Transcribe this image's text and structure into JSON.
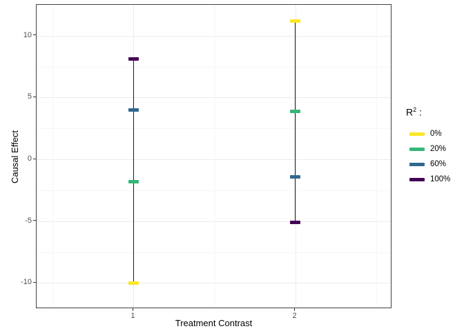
{
  "chart_data": {
    "type": "crossbar-interval",
    "title": "",
    "xlabel": "Treatment Contrast",
    "ylabel": "Causal Effect",
    "x_tick_labels": [
      "1",
      "2"
    ],
    "x_tick_values": [
      1,
      2
    ],
    "y_tick_labels": [
      "10",
      "5",
      "0",
      "-5",
      "-10"
    ],
    "y_tick_values": [
      10,
      5,
      0,
      -5,
      -10
    ],
    "xlim": [
      0.4,
      2.6
    ],
    "ylim": [
      -12.1,
      12.5
    ],
    "x_minor_gridlines": [
      0.5,
      1.5,
      2.5
    ],
    "y_minor_gridlines": [
      7.5,
      2.5,
      -2.5,
      -7.5
    ],
    "grid": true,
    "legend_position": "right",
    "categories": [
      1,
      2
    ],
    "series": [
      {
        "name": "0%",
        "color": "#FDE725",
        "values": [
          -10.0,
          11.2
        ]
      },
      {
        "name": "20%",
        "color": "#35B779",
        "values": [
          -1.8,
          3.9
        ]
      },
      {
        "name": "60%",
        "color": "#31688E",
        "values": [
          4.0,
          -1.4
        ]
      },
      {
        "name": "100%",
        "color": "#440154",
        "values": [
          8.1,
          -5.1
        ]
      }
    ],
    "intervals": [
      {
        "x": 1,
        "min": -10.0,
        "max": 8.1
      },
      {
        "x": 2,
        "min": -5.1,
        "max": 11.2
      }
    ],
    "legend": {
      "title_base": "R",
      "title_sup": "2",
      "title_sep": " :",
      "entries": [
        {
          "label": "0%",
          "color": "#FDE725"
        },
        {
          "label": "20%",
          "color": "#35B779"
        },
        {
          "label": "60%",
          "color": "#31688E"
        },
        {
          "label": "100%",
          "color": "#440154"
        }
      ]
    },
    "panel_colors": {
      "background": "#ffffff",
      "border": "#3f3f3f",
      "grid_major": "#ebebeb",
      "grid_minor": "#f6f6f6",
      "interval_line": "#1a1a1a",
      "tick_text": "#4d4d4d"
    }
  }
}
